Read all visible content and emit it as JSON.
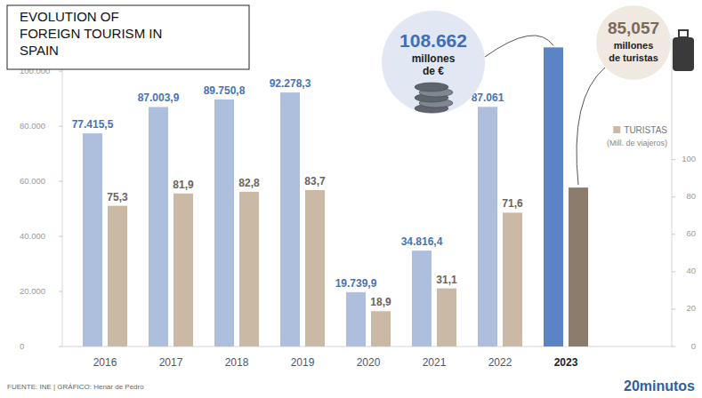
{
  "chart_data": {
    "type": "bar",
    "title": "EVOLUTION OF FOREIGN TOURISM IN SPAIN",
    "categories": [
      "2016",
      "2017",
      "2018",
      "2019",
      "2020",
      "2021",
      "2022",
      "2023"
    ],
    "series": [
      {
        "color": "#aebfdd",
        "colors": [
          "#aebfdd",
          "#aebfdd",
          "#aebfdd",
          "#aebfdd",
          "#aebfdd",
          "#aebfdd",
          "#aebfdd",
          "#5b84c4"
        ],
        "values": [
          77415.5,
          87003.9,
          89750.8,
          92278.3,
          19739.9,
          34816.4,
          87061,
          108662
        ],
        "value_labels": [
          "77.415,5",
          "87.003,9",
          "89.750,8",
          "92.278,3",
          "19.739,9",
          "34.816,4",
          "87.061",
          null
        ]
      },
      {
        "name": "TURISTAS",
        "axis": "y2",
        "color": "#c9b9a5",
        "colors": [
          "#c9b9a5",
          "#c9b9a5",
          "#c9b9a5",
          "#c9b9a5",
          "#c9b9a5",
          "#c9b9a5",
          "#c9b9a5",
          "#8c7c6c"
        ],
        "values": [
          75.3,
          81.9,
          82.8,
          83.7,
          18.9,
          31.1,
          71.6,
          85.057
        ],
        "value_labels": [
          "75,3",
          "81,9",
          "82,8",
          "83,7",
          "18,9",
          "31,1",
          "71,6",
          null
        ]
      }
    ],
    "ylim": [
      0,
      112000
    ],
    "yticks": [
      0,
      {
        "value": 20000,
        "label": "20.000"
      },
      {
        "value": 40000,
        "label": "40.000"
      },
      {
        "value": 60000,
        "label": "60.000"
      },
      {
        "value": 80000,
        "label": "80.000"
      },
      {
        "value": 100000,
        "label": "100.000"
      }
    ],
    "y2lim": [
      0,
      165
    ],
    "y2ticks": [
      0,
      20,
      40,
      60,
      80,
      100
    ],
    "y2_label": "(Mill. de viajeros)",
    "data_labels": true,
    "grid": false,
    "legend": "right",
    "annotations": [
      {
        "label": "108.662",
        "text": "millones de €"
      },
      {
        "label": "85,057",
        "text": "millones de turistas"
      }
    ],
    "source": "FUENTE: INE | GRÁFICO: Henar de Pedro",
    "brand": "20minutos"
  }
}
